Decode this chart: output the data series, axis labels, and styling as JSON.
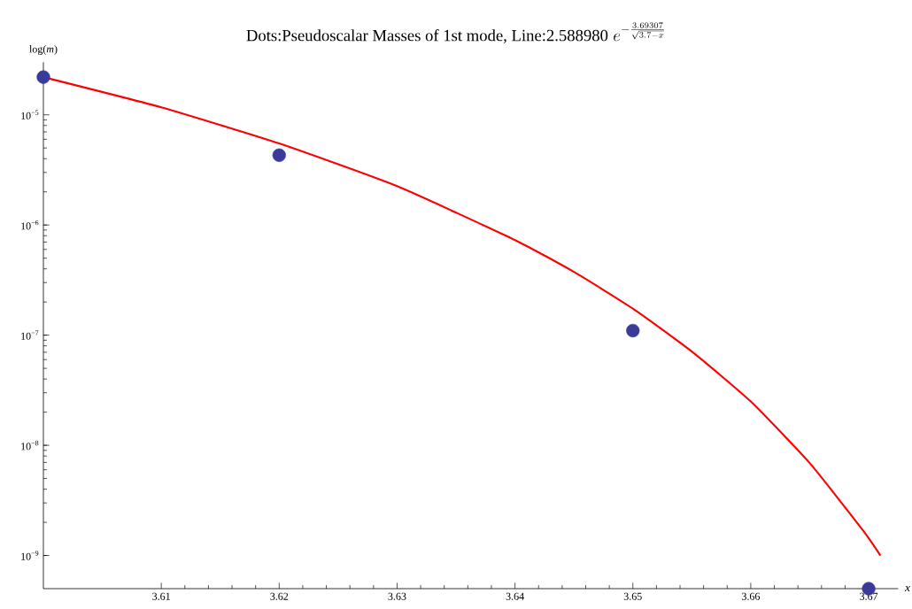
{
  "chart_data": {
    "type": "scatter",
    "title": "\\mbox{Dots:Pseudoscalar Masses of 1st mode, Line:2.588980} \\; e^{-\\frac{3.69307}{\\sqrt{3.7-x}}}",
    "xlabel": "x",
    "ylabel": "log(*m*)",
    "log": "y",
    "xlim": [
      3.6,
      3.6725
    ],
    "ylim": [
      5e-10,
      3e-05
    ],
    "xticks": [
      3.61,
      3.62,
      3.63,
      3.64,
      3.65,
      3.66,
      3.67
    ],
    "yticks": [
      {
        "value": 1e-09,
        "label": "10$^{−9}$"
      },
      {
        "value": 1e-08,
        "label": "10$^{−8}$"
      },
      {
        "value": 1e-07,
        "label": "10$^{−7}$"
      },
      {
        "value": 1e-06,
        "label": "10$^{−6}$"
      },
      {
        "value": 1e-05,
        "label": "10$^{−5}$"
      }
    ],
    "series": [
      {
        "type": "line",
        "color": "#ff0000",
        "x": [
          3.6,
          3.61,
          3.62,
          3.63,
          3.64,
          3.645,
          3.65,
          3.655,
          3.66,
          3.665,
          3.6695,
          3.671
        ],
        "values": [
          2.2e-05,
          1.17e-05,
          5.5e-06,
          2.25e-06,
          7.3e-07,
          3.75e-07,
          1.74e-07,
          7.1e-08,
          2.5e-08,
          6.9e-09,
          1.7e-09,
          1e-09
        ]
      },
      {
        "color": "#3a3a99",
        "marker": "circle",
        "x": [
          3.6,
          3.62,
          3.65,
          3.67
        ],
        "values": [
          2.2e-05,
          4.3e-06,
          1.1e-07,
          5e-10
        ]
      }
    ]
  }
}
